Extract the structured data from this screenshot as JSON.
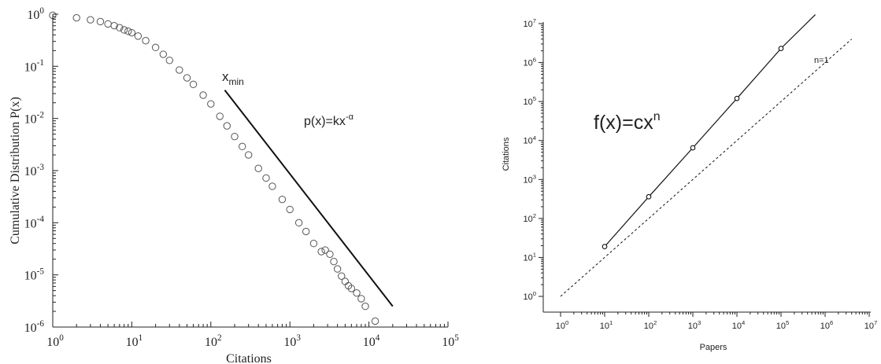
{
  "chart_data": [
    {
      "type": "scatter",
      "title": "",
      "xlabel": "Citations",
      "ylabel": "Cumulative Distribution P(x)",
      "xscale": "log",
      "yscale": "log",
      "xlim": [
        1,
        100000
      ],
      "ylim": [
        1e-06,
        1
      ],
      "grid": false,
      "x_tick_labels": [
        {
          "base": "10",
          "exp": "0"
        },
        {
          "base": "10",
          "exp": "1"
        },
        {
          "base": "10",
          "exp": "2"
        },
        {
          "base": "10",
          "exp": "3"
        },
        {
          "base": "10",
          "exp": "4"
        },
        {
          "base": "10",
          "exp": "5"
        }
      ],
      "y_tick_labels": [
        {
          "base": "10",
          "exp": "0"
        },
        {
          "base": "10",
          "exp": "-1"
        },
        {
          "base": "10",
          "exp": "-2"
        },
        {
          "base": "10",
          "exp": "-3"
        },
        {
          "base": "10",
          "exp": "-4"
        },
        {
          "base": "10",
          "exp": "-5"
        },
        {
          "base": "10",
          "exp": "-6"
        }
      ],
      "series": [
        {
          "marker": "open-circle",
          "x": [
            1,
            2,
            3,
            4,
            5,
            6,
            7,
            8,
            9,
            10,
            12,
            15,
            20,
            25,
            30,
            40,
            50,
            60,
            80,
            100,
            130,
            160,
            200,
            250,
            300,
            400,
            500,
            600,
            800,
            1000,
            1300,
            1600,
            2000,
            2500,
            2800,
            3200,
            3600,
            4000,
            4500,
            5000,
            5500,
            6000,
            7000,
            8000,
            9000,
            12000
          ],
          "y": [
            0.95,
            0.85,
            0.78,
            0.72,
            0.65,
            0.6,
            0.55,
            0.5,
            0.47,
            0.44,
            0.38,
            0.31,
            0.23,
            0.17,
            0.13,
            0.085,
            0.06,
            0.045,
            0.028,
            0.019,
            0.011,
            0.0072,
            0.0045,
            0.0029,
            0.002,
            0.0011,
            0.00072,
            0.0005,
            0.00028,
            0.00018,
            0.0001,
            6.8e-05,
            4e-05,
            2.8e-05,
            3e-05,
            2.5e-05,
            1.8e-05,
            1.3e-05,
            9.5e-06,
            7.5e-06,
            6.2e-06,
            5.5e-06,
            4.5e-06,
            3.5e-06,
            2.5e-06,
            1.3e-06
          ]
        },
        {
          "style": "solid-line",
          "x": [
            150,
            20000
          ],
          "y": [
            0.035,
            2.5e-06
          ]
        }
      ],
      "annotations": [
        {
          "text": "x",
          "subscript": "min"
        },
        {
          "text": "p(x)=kx",
          "superscript": "-α"
        }
      ]
    },
    {
      "type": "line",
      "title": "",
      "xlabel": "Papers",
      "ylabel": "Citations",
      "xscale": "log",
      "yscale": "log",
      "xlim": [
        1,
        10000000
      ],
      "ylim": [
        1,
        10000000
      ],
      "grid": false,
      "x_tick_labels": [
        {
          "base": "10",
          "exp": "0"
        },
        {
          "base": "10",
          "exp": "1"
        },
        {
          "base": "10",
          "exp": "2"
        },
        {
          "base": "10",
          "exp": "3"
        },
        {
          "base": "10",
          "exp": "4"
        },
        {
          "base": "10",
          "exp": "5"
        },
        {
          "base": "10",
          "exp": "6"
        },
        {
          "base": "10",
          "exp": "7"
        }
      ],
      "y_tick_labels": [
        {
          "base": "10",
          "exp": "0"
        },
        {
          "base": "10",
          "exp": "1"
        },
        {
          "base": "10",
          "exp": "2"
        },
        {
          "base": "10",
          "exp": "3"
        },
        {
          "base": "10",
          "exp": "4"
        },
        {
          "base": "10",
          "exp": "5"
        },
        {
          "base": "10",
          "exp": "6"
        },
        {
          "base": "10",
          "exp": "7"
        }
      ],
      "series": [
        {
          "style": "solid-line-with-circles",
          "x": [
            10,
            100,
            1000,
            10000,
            100000,
            600000
          ],
          "y": [
            19,
            360,
            6500,
            120000,
            2300000,
            17000000
          ],
          "markers": [
            true,
            true,
            true,
            true,
            true,
            false
          ]
        },
        {
          "name": "n=1",
          "style": "dashed-line",
          "x": [
            1,
            4000000
          ],
          "y": [
            1,
            4000000
          ]
        }
      ],
      "annotations": [
        {
          "text": "f(x)=cx",
          "superscript": "n"
        }
      ]
    }
  ]
}
